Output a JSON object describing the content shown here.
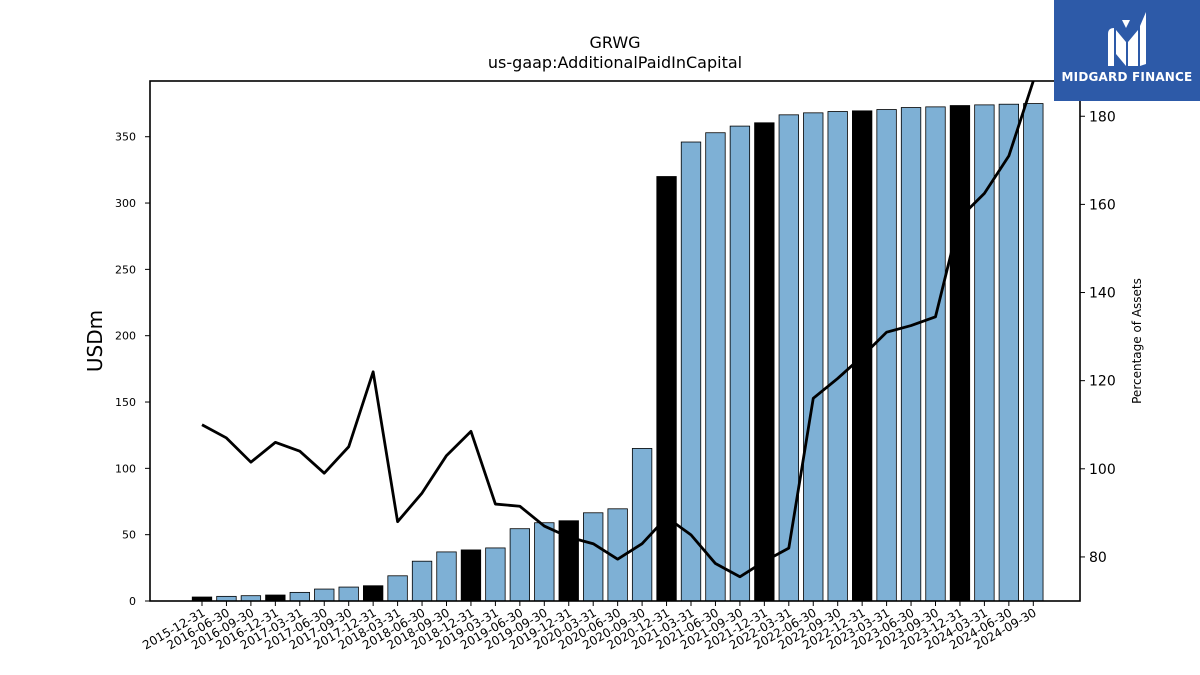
{
  "chart_data": {
    "type": "bar",
    "title": "GRWG",
    "subtitle": "us-gaap:AdditionalPaidInCapital",
    "ylabel": "USDm",
    "y2label": "Percentage of Assets",
    "ylim": [
      0,
      392
    ],
    "y2lim": [
      70,
      188
    ],
    "yticks": [
      0,
      50,
      100,
      150,
      200,
      250,
      300,
      350
    ],
    "y2ticks": [
      80,
      100,
      120,
      140,
      160,
      180
    ],
    "categories": [
      "2015-12-31",
      "2016-06-30",
      "2016-09-30",
      "2016-12-31",
      "2017-03-31",
      "2017-06-30",
      "2017-09-30",
      "2017-12-31",
      "2018-03-31",
      "2018-06-30",
      "2018-09-30",
      "2018-12-31",
      "2019-03-31",
      "2019-06-30",
      "2019-09-30",
      "2019-12-31",
      "2020-03-31",
      "2020-06-30",
      "2020-09-30",
      "2020-12-31",
      "2021-03-31",
      "2021-06-30",
      "2021-09-30",
      "2021-12-31",
      "2022-03-31",
      "2022-06-30",
      "2022-09-30",
      "2022-12-31",
      "2023-03-31",
      "2023-06-30",
      "2023-09-30",
      "2023-12-31",
      "2024-03-31",
      "2024-06-30",
      "2024-09-30"
    ],
    "series": [
      {
        "type": "bar",
        "values": [
          3,
          3.5,
          4,
          4.5,
          6.5,
          9,
          10.5,
          11.5,
          19,
          30,
          37,
          38.5,
          40,
          54.5,
          59,
          60.5,
          66.5,
          69.5,
          115,
          320,
          346,
          353,
          358,
          360.5,
          366.5,
          368,
          369,
          369.5,
          370.5,
          372,
          372.5,
          373.5,
          374,
          374.5,
          375
        ],
        "highlight": [
          true,
          false,
          false,
          true,
          false,
          false,
          false,
          true,
          false,
          false,
          false,
          true,
          false,
          false,
          false,
          true,
          false,
          false,
          false,
          true,
          false,
          false,
          false,
          true,
          false,
          false,
          false,
          true,
          false,
          false,
          false,
          true,
          false,
          false,
          false
        ]
      },
      {
        "type": "line",
        "axis": "right",
        "values": [
          110,
          107,
          101.5,
          106,
          104,
          99,
          105,
          122,
          88,
          94.5,
          103,
          108.5,
          92,
          91.5,
          87,
          84.5,
          83,
          79.5,
          83,
          89,
          85,
          78.5,
          75.5,
          79,
          82,
          116,
          120.5,
          125.5,
          131,
          132.5,
          134.5,
          157,
          162.5,
          171,
          188
        ]
      }
    ],
    "colors": {
      "bar": "#7eb0d5",
      "bar_highlight": "#000000",
      "line": "#000000"
    }
  },
  "logo": {
    "text": "MIDGARD FINANCE",
    "icon": "midgard-logo-icon",
    "color": "#2d5aa8"
  }
}
